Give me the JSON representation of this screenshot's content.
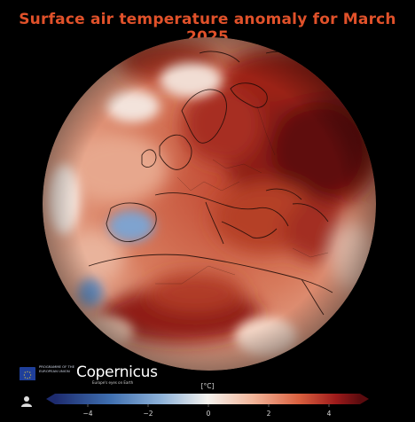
{
  "title": "Surface air temperature anomaly for March 2025",
  "logos": {
    "eu_text": "PROGRAMME OF THE EUROPEAN UNION",
    "copernicus": "Copernicus",
    "copernicus_tagline": "Europe's eyes on Earth"
  },
  "icons": [
    "user-icon",
    "eu-flag-icon",
    "copernicus-logo"
  ],
  "colorbar": {
    "unit": "[°C]",
    "ticks": [
      "−4",
      "−2",
      "0",
      "2",
      "4"
    ],
    "colors": [
      "#1d2b6e",
      "#3f6fb0",
      "#8fb3d9",
      "#f4f2ee",
      "#f2b59a",
      "#d9603f",
      "#9e1b1b",
      "#5a0b0e"
    ]
  },
  "map": {
    "projection": "orthographic",
    "colors": {
      "background": "#000000",
      "coastlines": "#1a0a06",
      "title": "#e0512a"
    }
  }
}
